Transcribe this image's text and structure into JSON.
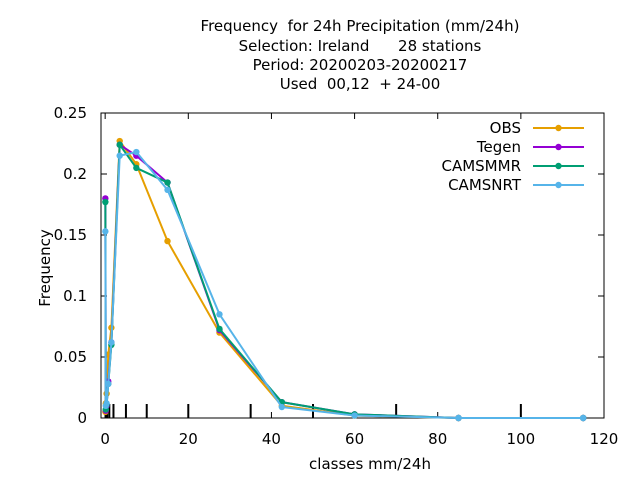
{
  "chart_data": {
    "type": "line",
    "title_lines": [
      "Frequency  for 24h Precipitation (mm/24h)",
      "Selection: Ireland      28 stations",
      "Period: 20200203-20200217",
      "Used  00,12  + 24-00"
    ],
    "xlabel": "classes mm/24h",
    "ylabel": "Frequency",
    "xlim": [
      -1,
      120
    ],
    "ylim": [
      0,
      0.25
    ],
    "xticks": [
      0,
      20,
      40,
      60,
      80,
      100,
      120
    ],
    "xtick_labels": [
      "0",
      "20",
      "40",
      "60",
      "80",
      "100",
      "120"
    ],
    "yticks": [
      0,
      0.05,
      0.1,
      0.15,
      0.2,
      0.25
    ],
    "ytick_labels": [
      "0",
      "0.05",
      "0.1",
      "0.15",
      "0.2",
      "0.25"
    ],
    "class_boundaries": [
      0.1,
      0.2,
      0.5,
      1,
      2,
      5,
      10,
      20,
      35,
      50,
      70,
      100
    ],
    "legend_position": "top-right",
    "grid": false,
    "series": [
      {
        "name": "OBS",
        "color": "#e69f00",
        "x": [
          0.05,
          0.15,
          0.35,
          0.75,
          1.5,
          3.5,
          7.5,
          15,
          27.5,
          42.5,
          60,
          85,
          115
        ],
        "y": [
          0.005,
          0.012,
          0.02,
          0.052,
          0.074,
          0.227,
          0.208,
          0.145,
          0.07,
          0.01,
          0.002,
          0.0,
          0.0
        ]
      },
      {
        "name": "Tegen",
        "color": "#9400d3",
        "x": [
          0.05,
          0.15,
          0.35,
          0.75,
          1.5,
          3.5,
          7.5,
          15,
          27.5,
          42.5,
          60,
          85,
          115
        ],
        "y": [
          0.18,
          0.006,
          0.01,
          0.03,
          0.062,
          0.224,
          0.215,
          0.193,
          0.072,
          0.013,
          0.003,
          0.0,
          0.0
        ]
      },
      {
        "name": "CAMSMMR",
        "color": "#009e73",
        "x": [
          0.05,
          0.15,
          0.35,
          0.75,
          1.5,
          3.5,
          7.5,
          15,
          27.5,
          42.5,
          60,
          85,
          115
        ],
        "y": [
          0.177,
          0.007,
          0.011,
          0.028,
          0.06,
          0.224,
          0.205,
          0.193,
          0.073,
          0.013,
          0.003,
          0.0,
          0.0
        ]
      },
      {
        "name": "CAMSNRT",
        "color": "#56b4e9",
        "x": [
          0.05,
          0.15,
          0.35,
          0.75,
          1.5,
          3.5,
          7.5,
          15,
          27.5,
          42.5,
          60,
          85,
          115
        ],
        "y": [
          0.153,
          0.01,
          0.012,
          0.028,
          0.062,
          0.215,
          0.218,
          0.187,
          0.085,
          0.009,
          0.002,
          0.0,
          0.0
        ]
      }
    ]
  }
}
